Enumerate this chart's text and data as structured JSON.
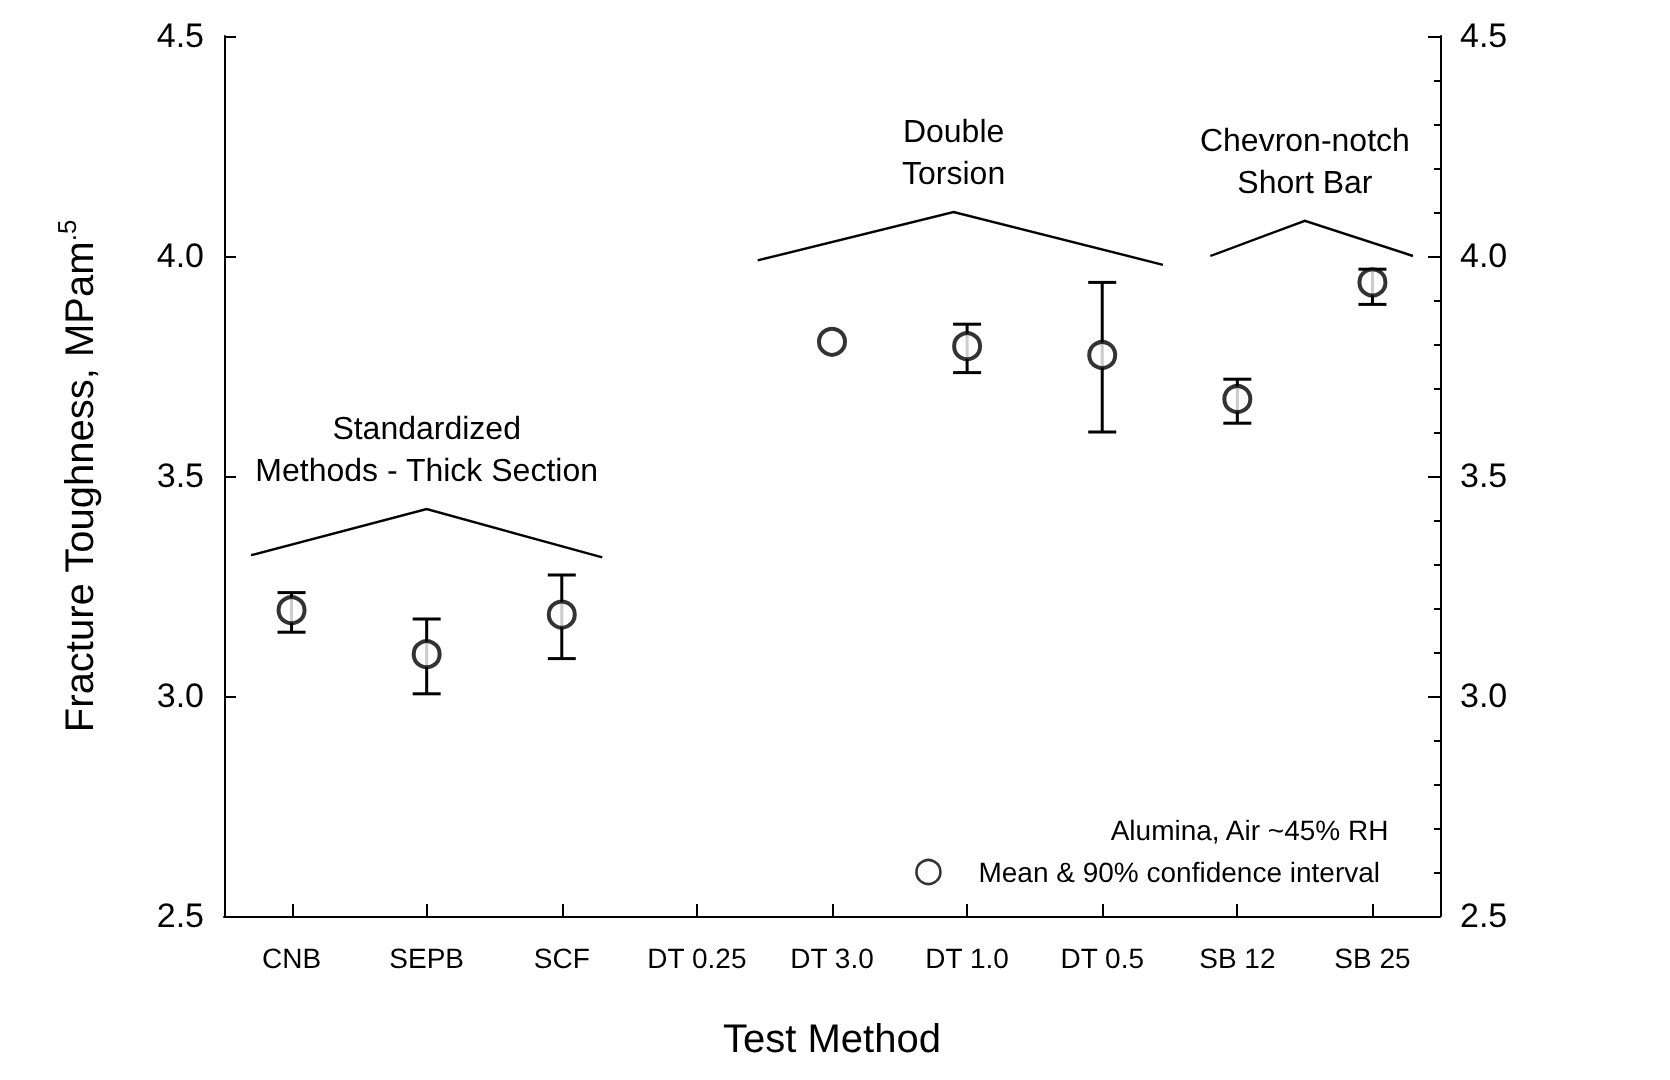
{
  "chart_data": {
    "type": "scatter",
    "xlabel": "Test Method",
    "ylabel": "Fracture Toughness, MPam$^{.5}$",
    "categories": [
      "CNB",
      "SEPB",
      "SCF",
      "DT 0.25",
      "DT 3.0",
      "DT 1.0",
      "DT 0.5",
      "SB 12",
      "SB 25"
    ],
    "series": [
      {
        "name": "Mean & 90% confidence interval",
        "color": "#000000",
        "values": [
          3.195,
          3.095,
          3.185,
          null,
          3.805,
          3.795,
          3.775,
          3.675,
          3.94
        ],
        "errors": [
          [
            3.145,
            3.235
          ],
          [
            3.005,
            3.175
          ],
          [
            3.085,
            3.275
          ],
          null,
          null,
          [
            3.735,
            3.845
          ],
          [
            3.6,
            3.94
          ],
          [
            3.62,
            3.72
          ],
          [
            3.89,
            3.97
          ]
        ]
      }
    ],
    "ylim": [
      2.5,
      4.5
    ],
    "yticks": [
      2.5,
      {
        "value": 3,
        "label": "3.0"
      },
      3.5,
      {
        "value": 4,
        "label": "4.0"
      },
      4.5
    ],
    "y2lim": [
      2.5,
      4.5
    ],
    "y2ticks": [
      2.5,
      {
        "value": 3,
        "label": "3.0"
      },
      3.5,
      {
        "value": 4,
        "label": "4.0"
      },
      4.5
    ],
    "marker": "circle",
    "legend": "bottom right",
    "grid": false,
    "annotations": [
      "Standardized\nMethods - Thick Section",
      "Double\nTorsion",
      "Chevron-notch\nShort Bar",
      "Alumina, Air ~45% RH"
    ]
  }
}
